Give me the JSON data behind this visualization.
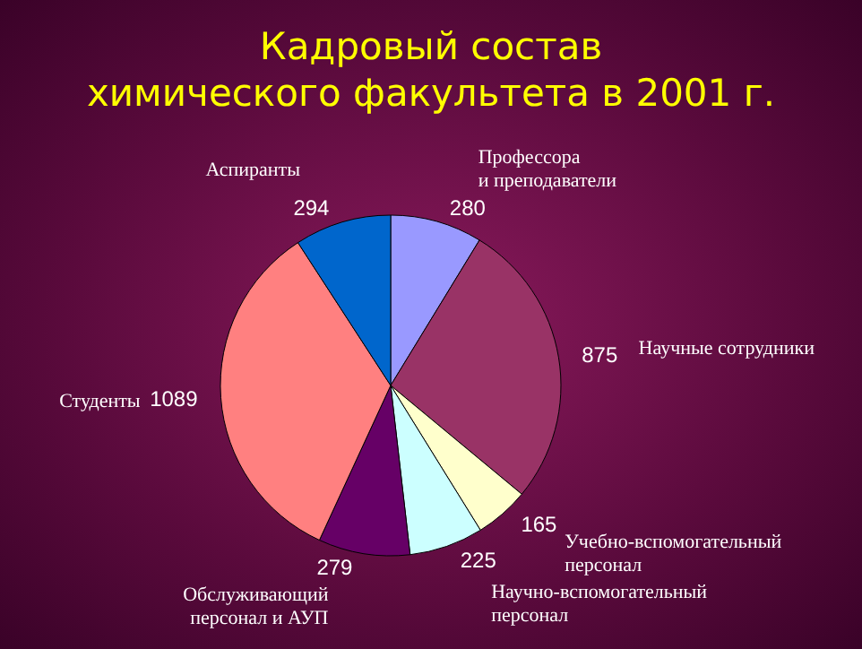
{
  "chart_data": {
    "type": "pie",
    "title": "Кадровый состав\nхимического факультета в 2001 г.",
    "categories": [
      "Профессора\nи преподаватели",
      "Научные сотрудники",
      "Учебно-вспомогательный\nперсонал",
      "Научно-вспомогательный\nперсонал",
      "Обслуживающий\nперсонал и АУП",
      "Студенты",
      "Аспиранты"
    ],
    "values": [
      280,
      875,
      165,
      225,
      279,
      1089,
      294
    ],
    "colors": [
      "#9999ff",
      "#993366",
      "#ffffcc",
      "#ccffff",
      "#660066",
      "#ff8080",
      "#0066cc"
    ],
    "data_labels": true,
    "legend": false
  }
}
